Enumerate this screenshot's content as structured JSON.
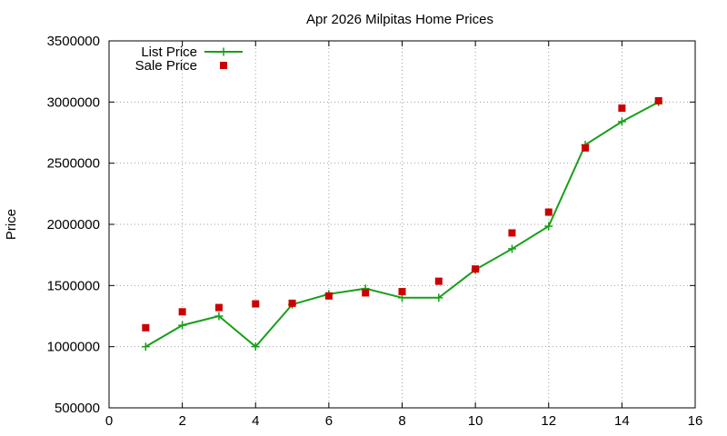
{
  "chart_data": {
    "type": "line",
    "title": "Apr 2026 Milpitas Home Prices",
    "xlabel": "",
    "ylabel": "Price",
    "xlim": [
      0,
      16
    ],
    "ylim": [
      500000,
      3500000
    ],
    "x_ticks": [
      "0",
      "2",
      "4",
      "6",
      "8",
      "10",
      "12",
      "14",
      "16"
    ],
    "y_ticks": [
      "500000",
      "1000000",
      "1500000",
      "2000000",
      "2500000",
      "3000000",
      "3500000"
    ],
    "grid": true,
    "legend_position": "top-left",
    "series": [
      {
        "name": "List Price",
        "style": "line-with-plus-markers",
        "color": "#1a9e1a",
        "x": [
          1,
          2,
          3,
          4,
          5,
          6,
          7,
          8,
          9,
          10,
          11,
          12,
          13,
          14,
          15
        ],
        "y": [
          1000000,
          1175000,
          1250000,
          1000000,
          1345000,
          1430000,
          1475000,
          1400000,
          1400000,
          1630000,
          1800000,
          1985000,
          2650000,
          2840000,
          3000000
        ]
      },
      {
        "name": "Sale Price",
        "style": "square-markers",
        "color": "#cc0000",
        "x": [
          1,
          2,
          3,
          4,
          5,
          6,
          7,
          8,
          9,
          10,
          11,
          12,
          13,
          14,
          15
        ],
        "y": [
          1155000,
          1285000,
          1320000,
          1350000,
          1355000,
          1415000,
          1440000,
          1450000,
          1535000,
          1635000,
          1930000,
          2100000,
          2625000,
          2950000,
          3010000
        ]
      }
    ]
  }
}
